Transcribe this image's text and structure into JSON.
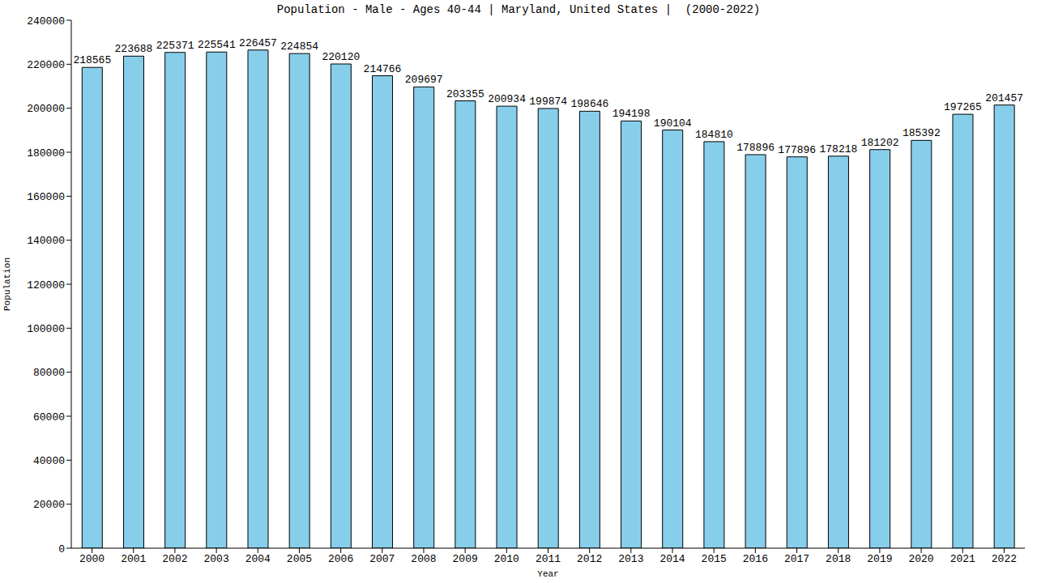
{
  "chart_data": {
    "type": "bar",
    "title": "Population - Male - Ages 40-44 | Maryland, United States |  (2000-2022)",
    "x_label": "Year",
    "y_label": "Population",
    "categories": [
      "2000",
      "2001",
      "2002",
      "2003",
      "2004",
      "2005",
      "2006",
      "2007",
      "2008",
      "2009",
      "2010",
      "2011",
      "2012",
      "2013",
      "2014",
      "2015",
      "2016",
      "2017",
      "2018",
      "2019",
      "2020",
      "2021",
      "2022"
    ],
    "values": [
      218565,
      223688,
      225371,
      225541,
      226457,
      224854,
      220120,
      214766,
      209697,
      203355,
      200934,
      199874,
      198646,
      194198,
      190104,
      184810,
      178896,
      177896,
      178218,
      181202,
      185392,
      197265,
      201457
    ],
    "color": "#87ceeb",
    "ylim": [
      0,
      240000
    ],
    "yticks": [
      0,
      20000,
      40000,
      60000,
      80000,
      100000,
      120000,
      140000,
      160000,
      180000,
      200000,
      220000,
      240000
    ],
    "grid": false,
    "data_labels": true
  }
}
